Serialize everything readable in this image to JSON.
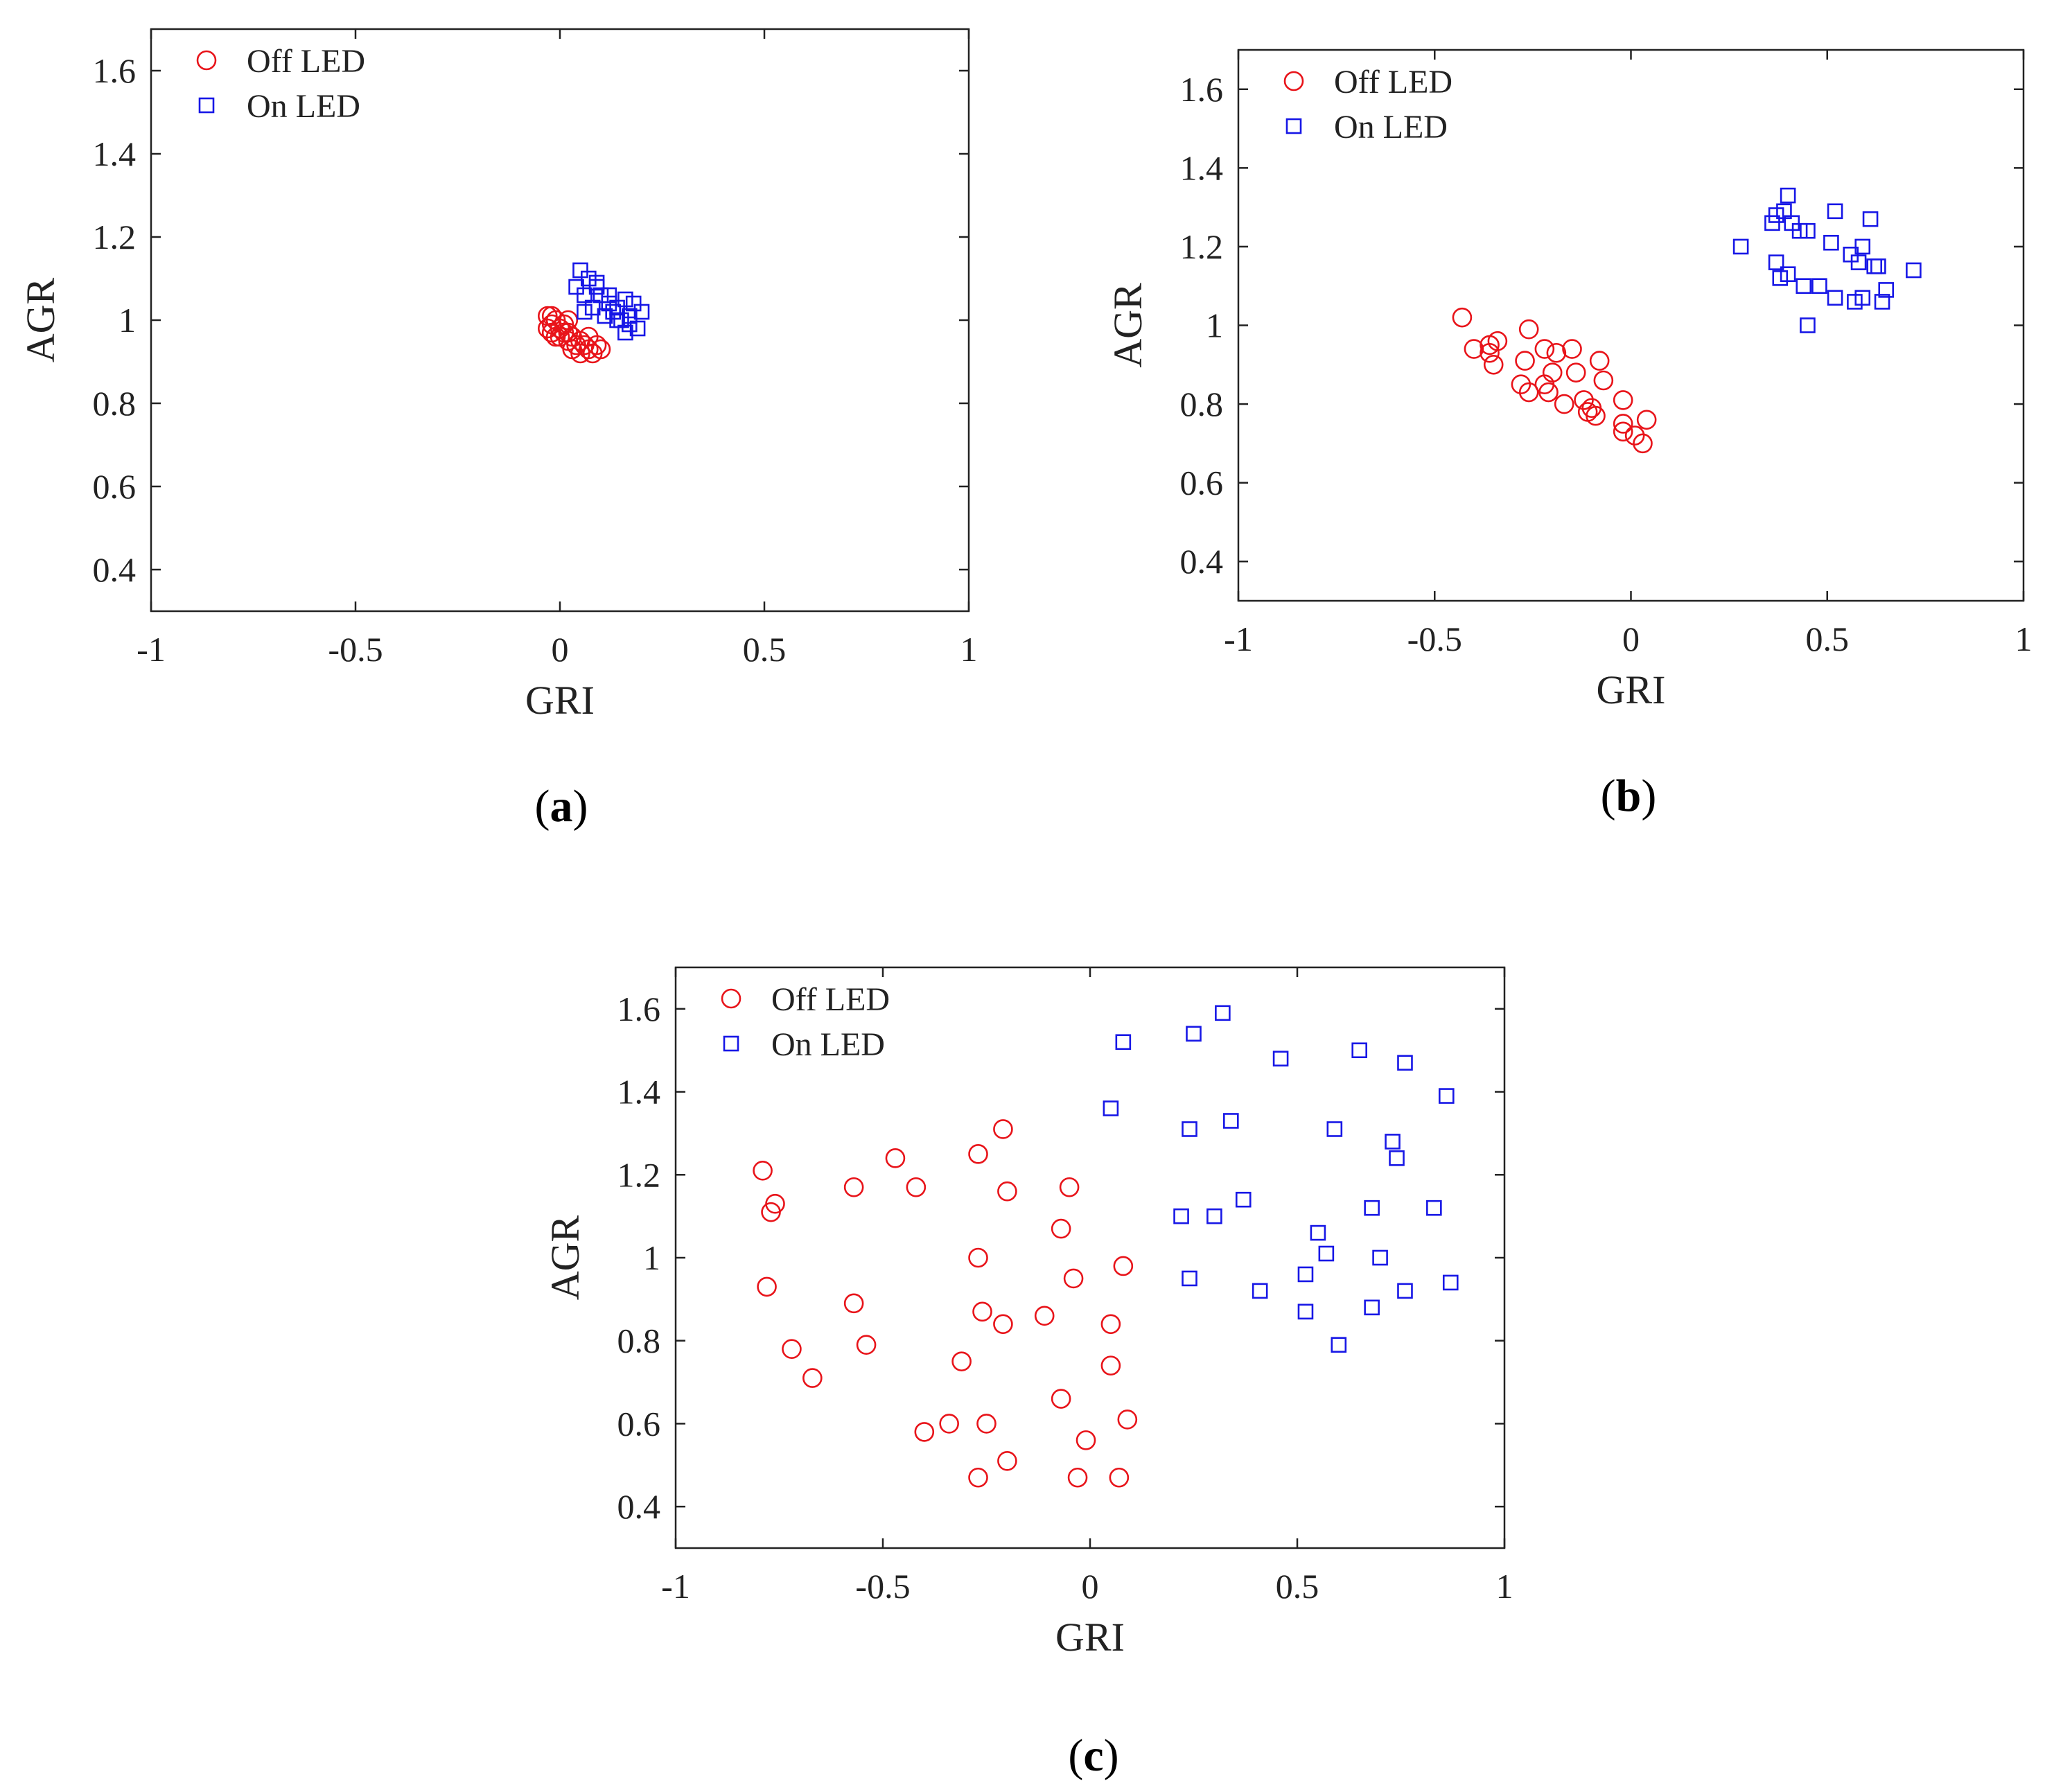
{
  "figure": {
    "legend": {
      "off_label": "Off LED",
      "on_label": "On LED"
    },
    "colors": {
      "off": "#e8141a",
      "on": "#1717e6",
      "axis": "#222222"
    }
  },
  "chart_data": [
    {
      "id": "a",
      "panel_label": "a",
      "type": "scatter",
      "title": "",
      "xlabel": "GRI",
      "ylabel": "AGR",
      "xlim": [
        -1,
        1
      ],
      "ylim": [
        0.3,
        1.7
      ],
      "xticks": [
        -1,
        -0.5,
        0,
        0.5,
        1
      ],
      "xtick_labels": [
        "-1",
        "-0.5",
        "0",
        "0.5",
        "1"
      ],
      "yticks": [
        0.4,
        0.6,
        0.8,
        1.0,
        1.2,
        1.4,
        1.6
      ],
      "ytick_labels": [
        "0.4",
        "0.6",
        "0.8",
        "1",
        "1.2",
        "1.4",
        "1.6"
      ],
      "legend_position": "top-left",
      "grid": false,
      "series": [
        {
          "name": "Off LED",
          "marker": "circle",
          "color": "#e8141a",
          "points": [
            [
              -0.03,
              1.01
            ],
            [
              -0.02,
              0.99
            ],
            [
              -0.01,
              1.0
            ],
            [
              0.0,
              0.98
            ],
            [
              0.01,
              0.99
            ],
            [
              0.02,
              0.97
            ],
            [
              0.03,
              0.96
            ],
            [
              -0.02,
              0.97
            ],
            [
              0.0,
              0.96
            ],
            [
              0.02,
              0.95
            ],
            [
              0.04,
              0.94
            ],
            [
              0.05,
              0.95
            ],
            [
              0.06,
              0.94
            ],
            [
              0.07,
              0.93
            ],
            [
              0.08,
              0.92
            ],
            [
              0.09,
              0.94
            ],
            [
              0.1,
              0.93
            ],
            [
              -0.03,
              0.98
            ],
            [
              -0.01,
              0.96
            ],
            [
              0.03,
              0.93
            ],
            [
              0.05,
              0.92
            ],
            [
              0.07,
              0.96
            ],
            [
              0.01,
              0.97
            ],
            [
              0.02,
              1.0
            ],
            [
              -0.02,
              1.01
            ]
          ]
        },
        {
          "name": "On LED",
          "marker": "square",
          "color": "#1717e6",
          "points": [
            [
              0.05,
              1.12
            ],
            [
              0.07,
              1.1
            ],
            [
              0.09,
              1.09
            ],
            [
              0.04,
              1.08
            ],
            [
              0.06,
              1.06
            ],
            [
              0.1,
              1.06
            ],
            [
              0.12,
              1.04
            ],
            [
              0.14,
              1.03
            ],
            [
              0.16,
              1.05
            ],
            [
              0.18,
              1.04
            ],
            [
              0.2,
              1.02
            ],
            [
              0.15,
              1.0
            ],
            [
              0.17,
              0.99
            ],
            [
              0.19,
              0.98
            ],
            [
              0.16,
              0.97
            ],
            [
              0.13,
              1.02
            ],
            [
              0.11,
              1.01
            ],
            [
              0.08,
              1.03
            ],
            [
              0.06,
              1.02
            ],
            [
              0.09,
              1.08
            ],
            [
              0.12,
              1.06
            ],
            [
              0.17,
              1.01
            ],
            [
              0.14,
              1.0
            ]
          ]
        }
      ]
    },
    {
      "id": "b",
      "panel_label": "b",
      "type": "scatter",
      "title": "",
      "xlabel": "GRI",
      "ylabel": "AGR",
      "xlim": [
        -1,
        1
      ],
      "ylim": [
        0.3,
        1.7
      ],
      "xticks": [
        -1,
        -0.5,
        0,
        0.5,
        1
      ],
      "xtick_labels": [
        "-1",
        "-0.5",
        "0",
        "0.5",
        "1"
      ],
      "yticks": [
        0.4,
        0.6,
        0.8,
        1.0,
        1.2,
        1.4,
        1.6
      ],
      "ytick_labels": [
        "0.4",
        "0.6",
        "0.8",
        "1",
        "1.2",
        "1.4",
        "1.6"
      ],
      "legend_position": "top-left",
      "grid": false,
      "series": [
        {
          "name": "Off LED",
          "marker": "circle",
          "color": "#e8141a",
          "points": [
            [
              -0.43,
              1.02
            ],
            [
              -0.4,
              0.94
            ],
            [
              -0.36,
              0.95
            ],
            [
              -0.34,
              0.96
            ],
            [
              -0.35,
              0.9
            ],
            [
              -0.36,
              0.93
            ],
            [
              -0.26,
              0.99
            ],
            [
              -0.27,
              0.91
            ],
            [
              -0.28,
              0.85
            ],
            [
              -0.26,
              0.83
            ],
            [
              -0.22,
              0.85
            ],
            [
              -0.21,
              0.83
            ],
            [
              -0.22,
              0.94
            ],
            [
              -0.19,
              0.93
            ],
            [
              -0.15,
              0.94
            ],
            [
              -0.14,
              0.88
            ],
            [
              -0.2,
              0.88
            ],
            [
              -0.17,
              0.8
            ],
            [
              -0.12,
              0.81
            ],
            [
              -0.1,
              0.79
            ],
            [
              -0.11,
              0.78
            ],
            [
              -0.09,
              0.77
            ],
            [
              -0.08,
              0.91
            ],
            [
              -0.07,
              0.86
            ],
            [
              -0.02,
              0.81
            ],
            [
              -0.02,
              0.75
            ],
            [
              -0.02,
              0.73
            ],
            [
              0.01,
              0.72
            ],
            [
              0.03,
              0.7
            ],
            [
              0.04,
              0.76
            ]
          ]
        },
        {
          "name": "On LED",
          "marker": "square",
          "color": "#1717e6",
          "points": [
            [
              0.28,
              1.2
            ],
            [
              0.36,
              1.26
            ],
            [
              0.37,
              1.28
            ],
            [
              0.39,
              1.29
            ],
            [
              0.4,
              1.33
            ],
            [
              0.41,
              1.26
            ],
            [
              0.43,
              1.24
            ],
            [
              0.45,
              1.24
            ],
            [
              0.37,
              1.16
            ],
            [
              0.38,
              1.12
            ],
            [
              0.4,
              1.13
            ],
            [
              0.44,
              1.1
            ],
            [
              0.45,
              1.0
            ],
            [
              0.48,
              1.1
            ],
            [
              0.51,
              1.21
            ],
            [
              0.52,
              1.29
            ],
            [
              0.52,
              1.07
            ],
            [
              0.56,
              1.18
            ],
            [
              0.57,
              1.06
            ],
            [
              0.58,
              1.16
            ],
            [
              0.59,
              1.2
            ],
            [
              0.59,
              1.07
            ],
            [
              0.61,
              1.27
            ],
            [
              0.62,
              1.15
            ],
            [
              0.63,
              1.15
            ],
            [
              0.64,
              1.06
            ],
            [
              0.65,
              1.09
            ],
            [
              0.72,
              1.14
            ]
          ]
        }
      ]
    },
    {
      "id": "c",
      "panel_label": "c",
      "type": "scatter",
      "title": "",
      "xlabel": "GRI",
      "ylabel": "AGR",
      "xlim": [
        -1,
        1
      ],
      "ylim": [
        0.3,
        1.7
      ],
      "xticks": [
        -1,
        -0.5,
        0,
        0.5,
        1
      ],
      "xtick_labels": [
        "-1",
        "-0.5",
        "0",
        "0.5",
        "1"
      ],
      "yticks": [
        0.4,
        0.6,
        0.8,
        1.0,
        1.2,
        1.4,
        1.6
      ],
      "ytick_labels": [
        "0.4",
        "0.6",
        "0.8",
        "1",
        "1.2",
        "1.4",
        "1.6"
      ],
      "legend_position": "top-left",
      "grid": false,
      "series": [
        {
          "name": "Off LED",
          "marker": "circle",
          "color": "#e8141a",
          "points": [
            [
              -0.79,
              1.21
            ],
            [
              -0.77,
              1.11
            ],
            [
              -0.76,
              1.13
            ],
            [
              -0.78,
              0.93
            ],
            [
              -0.72,
              0.78
            ],
            [
              -0.67,
              0.71
            ],
            [
              -0.57,
              1.17
            ],
            [
              -0.57,
              0.89
            ],
            [
              -0.54,
              0.79
            ],
            [
              -0.47,
              1.24
            ],
            [
              -0.42,
              1.17
            ],
            [
              -0.4,
              0.58
            ],
            [
              -0.34,
              0.6
            ],
            [
              -0.31,
              0.75
            ],
            [
              -0.27,
              1.25
            ],
            [
              -0.27,
              1.0
            ],
            [
              -0.26,
              0.87
            ],
            [
              -0.25,
              0.6
            ],
            [
              -0.21,
              1.31
            ],
            [
              -0.2,
              1.16
            ],
            [
              -0.21,
              0.84
            ],
            [
              -0.2,
              0.51
            ],
            [
              -0.27,
              0.47
            ],
            [
              -0.11,
              0.86
            ],
            [
              -0.07,
              1.07
            ],
            [
              -0.05,
              1.17
            ],
            [
              -0.04,
              0.95
            ],
            [
              -0.07,
              0.66
            ],
            [
              -0.01,
              0.56
            ],
            [
              0.05,
              0.84
            ],
            [
              0.05,
              0.74
            ],
            [
              0.08,
              0.98
            ],
            [
              0.09,
              0.61
            ],
            [
              -0.03,
              0.47
            ],
            [
              0.07,
              0.47
            ]
          ]
        },
        {
          "name": "On LED",
          "marker": "square",
          "color": "#1717e6",
          "points": [
            [
              0.08,
              1.52
            ],
            [
              0.05,
              1.36
            ],
            [
              0.25,
              1.54
            ],
            [
              0.32,
              1.59
            ],
            [
              0.24,
              1.31
            ],
            [
              0.34,
              1.33
            ],
            [
              0.22,
              1.1
            ],
            [
              0.3,
              1.1
            ],
            [
              0.37,
              1.14
            ],
            [
              0.24,
              0.95
            ],
            [
              0.41,
              0.92
            ],
            [
              0.46,
              1.48
            ],
            [
              0.52,
              0.96
            ],
            [
              0.52,
              0.87
            ],
            [
              0.55,
              1.06
            ],
            [
              0.57,
              1.01
            ],
            [
              0.59,
              1.31
            ],
            [
              0.6,
              0.79
            ],
            [
              0.65,
              1.5
            ],
            [
              0.68,
              1.12
            ],
            [
              0.68,
              0.88
            ],
            [
              0.7,
              1.0
            ],
            [
              0.73,
              1.28
            ],
            [
              0.74,
              1.24
            ],
            [
              0.76,
              1.47
            ],
            [
              0.76,
              0.92
            ],
            [
              0.83,
              1.12
            ],
            [
              0.86,
              1.39
            ],
            [
              0.87,
              0.94
            ]
          ]
        }
      ]
    }
  ]
}
